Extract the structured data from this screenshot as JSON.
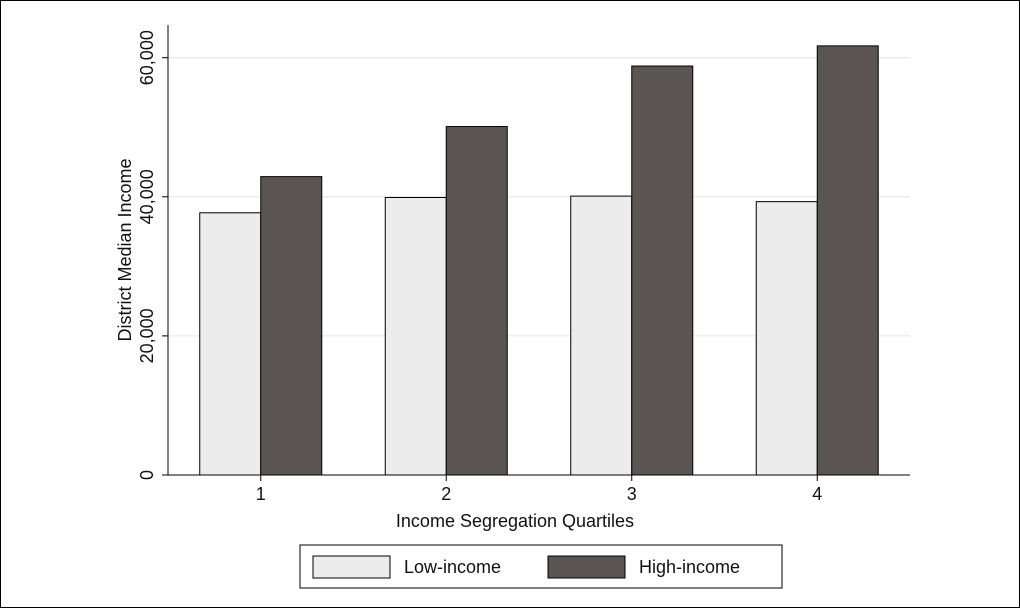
{
  "chart_data": {
    "type": "bar",
    "categories": [
      "1",
      "2",
      "3",
      "4"
    ],
    "series": [
      {
        "name": "Low-income",
        "color": "#ececec",
        "values": [
          37700,
          39900,
          40100,
          39300
        ]
      },
      {
        "name": "High-income",
        "color": "#5a5553",
        "values": [
          42900,
          50100,
          58800,
          61700
        ]
      }
    ],
    "x_label": "Income Segregation Quartiles",
    "y_label": "District Median Income",
    "ylim": [
      0,
      64700
    ],
    "yticks": [
      0,
      {
        "value": 20000,
        "label": "20,000"
      },
      {
        "value": 40000,
        "label": "40,000"
      },
      {
        "value": 60000,
        "label": "60,000"
      }
    ],
    "grid": true,
    "legend": "bottom"
  }
}
